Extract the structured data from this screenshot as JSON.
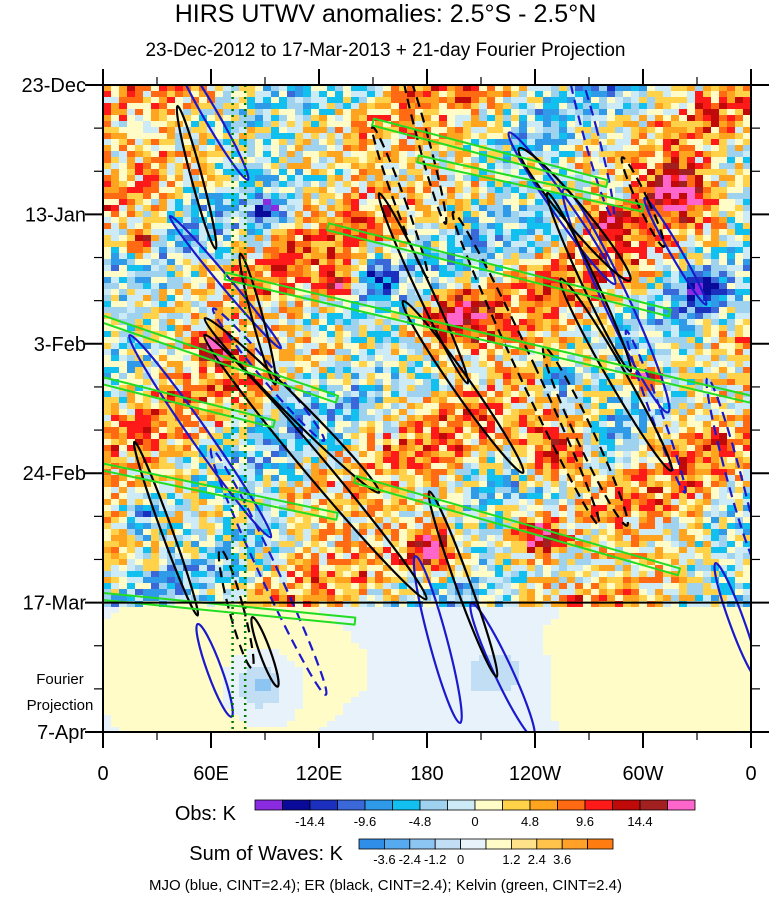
{
  "header": {
    "title": "HIRS UTWV anomalies: 2.5°S - 2.5°N",
    "subtitle": "23-Dec-2012 to 17-Mar-2013 + 21-day Fourier Projection"
  },
  "chart_data": {
    "type": "heatmap",
    "title": "HIRS UTWV anomalies: 2.5°S - 2.5°N",
    "subtitle": "23-Dec-2012 to 17-Mar-2013 + 21-day Fourier Projection",
    "x_axis": {
      "range_deg_east": [
        0,
        360
      ],
      "tick_positions_deg_east": [
        0,
        60,
        120,
        180,
        240,
        300,
        360
      ],
      "tick_labels": [
        "0",
        "60E",
        "120E",
        "180",
        "120W",
        "60W",
        "0"
      ]
    },
    "y_axis": {
      "range_days": [
        0,
        105
      ],
      "reversed": true,
      "tick_positions_days": [
        0,
        21,
        42,
        63,
        84,
        105
      ],
      "tick_labels": [
        "23-Dec",
        "13-Jan",
        "3-Feb",
        "24-Feb",
        "17-Mar",
        "7-Apr"
      ],
      "projection_label": [
        "Fourier",
        "Projection"
      ],
      "observation_end_day": 84
    },
    "marker_longitudes_deg_east": [
      72,
      79
    ],
    "obs_colorbar": {
      "label": "Obs: K",
      "colors": [
        "#8a2be2",
        "#0a0a9a",
        "#1c30c0",
        "#3a68d8",
        "#2f9be8",
        "#12c0f0",
        "#9ed2ee",
        "#ccebf6",
        "#fffcc8",
        "#ffd24a",
        "#ffa41e",
        "#ff6a12",
        "#ff1a1a",
        "#c00a0a",
        "#a32020",
        "#ff66cc"
      ],
      "tick_labels": [
        "-14.4",
        "-9.6",
        "-4.8",
        "0",
        "4.8",
        "9.6",
        "14.4"
      ],
      "tick_boundary_index": [
        2,
        4,
        6,
        8,
        10,
        12,
        14
      ]
    },
    "waves_colorbar": {
      "label": "Sum of Waves: K",
      "colors": [
        "#2f8fe8",
        "#56aaf0",
        "#8cc4f2",
        "#c2def5",
        "#e8f2fb",
        "#fffcc8",
        "#ffe28a",
        "#ffc24a",
        "#ffa028",
        "#ff7d10"
      ],
      "tick_labels": [
        "-3.6",
        "-2.4",
        "-1.2",
        "0",
        "1.2",
        "2.4",
        "3.6"
      ],
      "tick_boundary_index": [
        1,
        2,
        3,
        4,
        6,
        7,
        8
      ]
    },
    "contour_legend": "MJO (blue, CINT=2.4); ER (black, CINT=2.4); Kelvin (green, CINT=2.4)",
    "series": [
      {
        "name": "MJO",
        "color": "#1a1acc",
        "contour_interval": 2.4,
        "features": [
          {
            "lon": 60,
            "day": 5,
            "a": 4,
            "b": 12,
            "tilt": -30,
            "sign": 1
          },
          {
            "lon": 68,
            "day": 32,
            "a": 3,
            "b": 14,
            "tilt": -40,
            "sign": 1
          },
          {
            "lon": 54,
            "day": 57,
            "a": 5,
            "b": 20,
            "tilt": -35,
            "sign": 1
          },
          {
            "lon": 92,
            "day": 47,
            "a": 4,
            "b": 14,
            "tilt": -40,
            "sign": -1
          },
          {
            "lon": 92,
            "day": 79,
            "a": 5,
            "b": 22,
            "tilt": -25,
            "sign": -1
          },
          {
            "lon": 270,
            "day": 7,
            "a": 4,
            "b": 15,
            "tilt": -15,
            "sign": -1
          },
          {
            "lon": 285,
            "day": 35,
            "a": 7,
            "b": 20,
            "tilt": -25,
            "sign": 1
          },
          {
            "lon": 255,
            "day": 20,
            "a": 5,
            "b": 15,
            "tilt": -35,
            "sign": 1
          },
          {
            "lon": 318,
            "day": 27,
            "a": 3,
            "b": 10,
            "tilt": -30,
            "sign": 1
          },
          {
            "lon": 186,
            "day": 90,
            "a": 5,
            "b": 14,
            "tilt": -15,
            "sign": 1
          },
          {
            "lon": 222,
            "day": 95,
            "a": 5,
            "b": 12,
            "tilt": -25,
            "sign": 1
          },
          {
            "lon": 350,
            "day": 63,
            "a": 4,
            "b": 16,
            "tilt": -15,
            "sign": -1
          },
          {
            "lon": 352,
            "day": 87,
            "a": 4,
            "b": 10,
            "tilt": -20,
            "sign": 1
          },
          {
            "lon": 62,
            "day": 95,
            "a": 4,
            "b": 8,
            "tilt": -20,
            "sign": 1
          },
          {
            "lon": 307,
            "day": 53,
            "a": 3,
            "b": 14,
            "tilt": -20,
            "sign": -1
          }
        ]
      },
      {
        "name": "ER",
        "color": "#000000",
        "contour_interval": 2.4,
        "features": [
          {
            "lon": 52,
            "day": 15,
            "a": 3,
            "b": 12,
            "tilt": -15,
            "sign": 1
          },
          {
            "lon": 178,
            "day": 9,
            "a": 3,
            "b": 14,
            "tilt": -15,
            "sign": -1
          },
          {
            "lon": 165,
            "day": 19,
            "a": 3,
            "b": 13,
            "tilt": -20,
            "sign": -1
          },
          {
            "lon": 178,
            "day": 33,
            "a": 4,
            "b": 17,
            "tilt": -25,
            "sign": 1
          },
          {
            "lon": 200,
            "day": 49,
            "a": 5,
            "b": 17,
            "tilt": -35,
            "sign": 1
          },
          {
            "lon": 118,
            "day": 62,
            "a": 6,
            "b": 28,
            "tilt": -40,
            "sign": 1
          },
          {
            "lon": 105,
            "day": 52,
            "a": 5,
            "b": 20,
            "tilt": -45,
            "sign": 1
          },
          {
            "lon": 86,
            "day": 38,
            "a": 3,
            "b": 11,
            "tilt": -15,
            "sign": 1
          },
          {
            "lon": 35,
            "day": 72,
            "a": 3,
            "b": 15,
            "tilt": -20,
            "sign": 1
          },
          {
            "lon": 90,
            "day": 92,
            "a": 3,
            "b": 6,
            "tilt": -20,
            "sign": 1
          },
          {
            "lon": 235,
            "day": 46,
            "a": 5,
            "b": 28,
            "tilt": -25,
            "sign": -1
          },
          {
            "lon": 270,
            "day": 32,
            "a": 4,
            "b": 16,
            "tilt": -25,
            "sign": 1
          },
          {
            "lon": 285,
            "day": 47,
            "a": 5,
            "b": 18,
            "tilt": -30,
            "sign": 1
          },
          {
            "lon": 262,
            "day": 21,
            "a": 6,
            "b": 14,
            "tilt": -40,
            "sign": 1
          },
          {
            "lon": 300,
            "day": 19,
            "a": 3,
            "b": 8,
            "tilt": -25,
            "sign": -1
          },
          {
            "lon": 268,
            "day": 57,
            "a": 5,
            "b": 16,
            "tilt": -25,
            "sign": -1
          },
          {
            "lon": 200,
            "day": 81,
            "a": 4,
            "b": 16,
            "tilt": -20,
            "sign": 1
          },
          {
            "lon": 74,
            "day": 85,
            "a": 4,
            "b": 10,
            "tilt": -15,
            "sign": -1
          }
        ]
      },
      {
        "name": "Kelvin",
        "color": "#22dd22",
        "contour_interval": 2.4,
        "bands": [
          {
            "lon1": 150,
            "day1": 6,
            "lon2": 280,
            "day2": 16
          },
          {
            "lon1": 175,
            "day1": 12,
            "lon2": 300,
            "day2": 20
          },
          {
            "lon1": 125,
            "day1": 23,
            "lon2": 315,
            "day2": 37
          },
          {
            "lon1": 68,
            "day1": 31,
            "lon2": 360,
            "day2": 51
          },
          {
            "lon1": 0,
            "day1": 38,
            "lon2": 130,
            "day2": 51
          },
          {
            "lon1": 0,
            "day1": 48,
            "lon2": 95,
            "day2": 55
          },
          {
            "lon1": 0,
            "day1": 62,
            "lon2": 130,
            "day2": 70
          },
          {
            "lon1": 140,
            "day1": 64,
            "lon2": 320,
            "day2": 79
          },
          {
            "lon1": 0,
            "day1": 83,
            "lon2": 140,
            "day2": 87
          }
        ]
      }
    ]
  }
}
